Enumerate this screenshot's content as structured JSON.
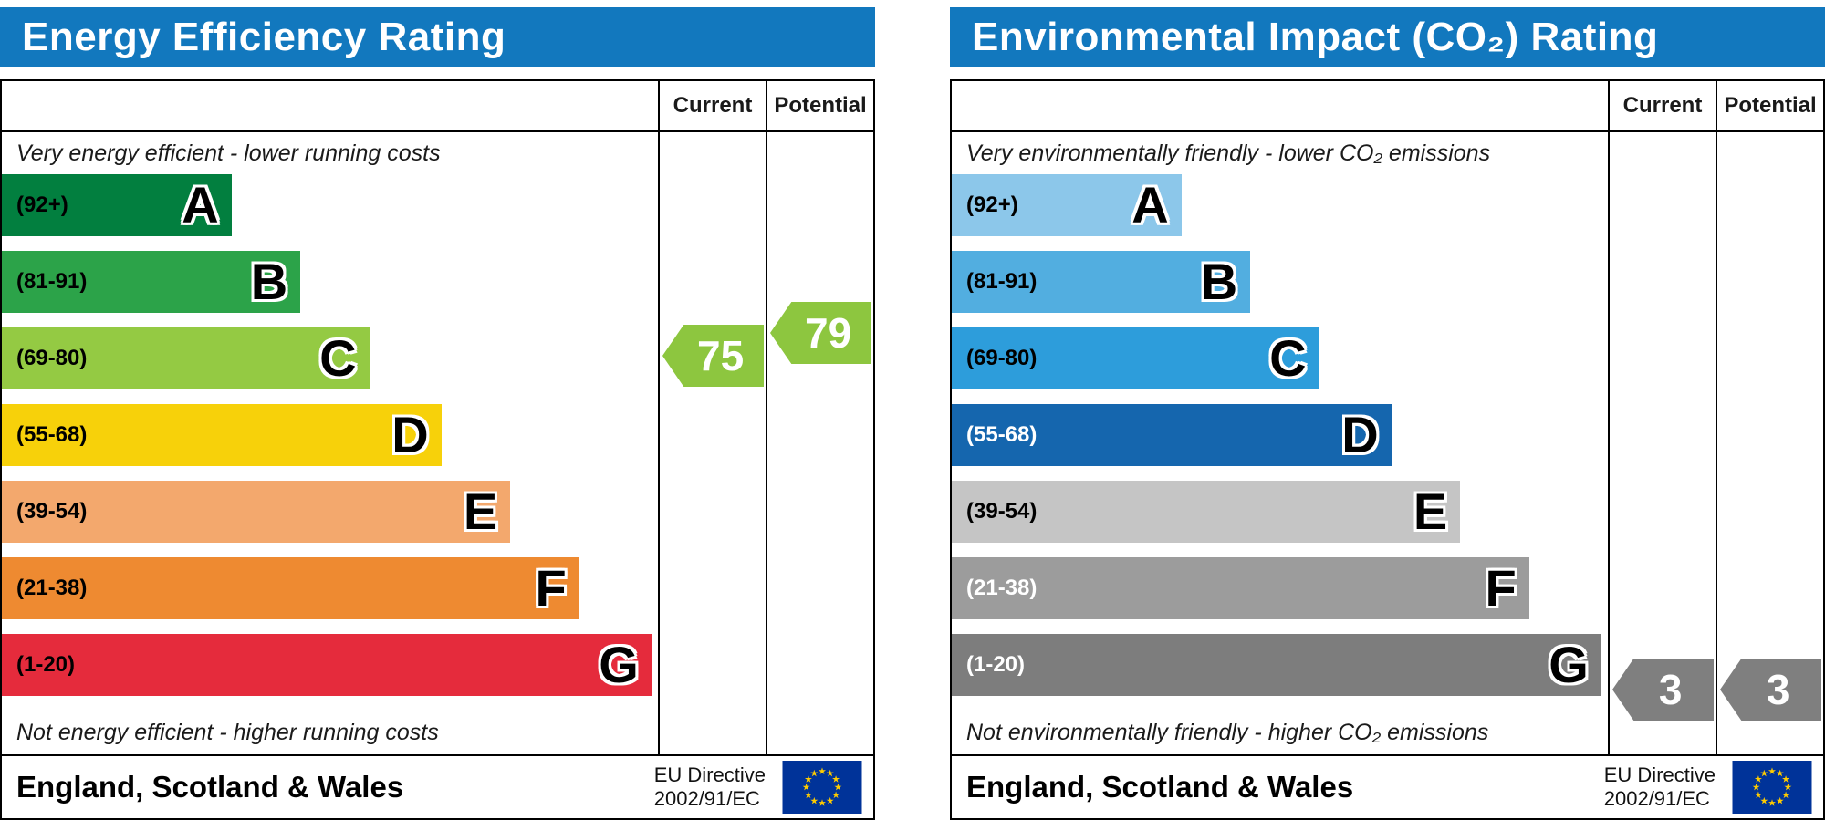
{
  "panels": [
    {
      "title": "Energy Efficiency Rating",
      "columns": {
        "current": "Current",
        "potential": "Potential"
      },
      "top_note": "Very energy efficient - lower running costs",
      "bottom_note": "Not energy efficient - higher running costs",
      "bands": [
        {
          "letter": "A",
          "range": "(92+)",
          "min": 92,
          "max": 100,
          "color": "#027f3f",
          "label_color": "#000000",
          "width_pct": 35
        },
        {
          "letter": "B",
          "range": "(81-91)",
          "min": 81,
          "max": 91,
          "color": "#2ca349",
          "label_color": "#000000",
          "width_pct": 45.5
        },
        {
          "letter": "C",
          "range": "(69-80)",
          "min": 69,
          "max": 80,
          "color": "#94ca43",
          "label_color": "#000000",
          "width_pct": 56
        },
        {
          "letter": "D",
          "range": "(55-68)",
          "min": 55,
          "max": 68,
          "color": "#f7d10a",
          "label_color": "#000000",
          "width_pct": 67
        },
        {
          "letter": "E",
          "range": "(39-54)",
          "min": 39,
          "max": 54,
          "color": "#f3a86d",
          "label_color": "#000000",
          "width_pct": 77.5
        },
        {
          "letter": "F",
          "range": "(21-38)",
          "min": 21,
          "max": 38,
          "color": "#ee8a31",
          "label_color": "#000000",
          "width_pct": 88
        },
        {
          "letter": "G",
          "range": "(1-20)",
          "min": 1,
          "max": 20,
          "color": "#e52b3c",
          "label_color": "#000000",
          "width_pct": 99
        }
      ],
      "current": {
        "value": 75,
        "band_index": 2,
        "color": "#8dc63f"
      },
      "potential": {
        "value": 79,
        "band_index": 2,
        "color": "#8dc63f"
      },
      "footer": {
        "region": "England, Scotland & Wales",
        "directive_line1": "EU Directive",
        "directive_line2": "2002/91/EC"
      }
    },
    {
      "title": "Environmental Impact (CO₂) Rating",
      "columns": {
        "current": "Current",
        "potential": "Potential"
      },
      "top_note": "Very environmentally friendly - lower CO₂ emissions",
      "bottom_note": "Not environmentally friendly - higher CO₂ emissions",
      "bands": [
        {
          "letter": "A",
          "range": "(92+)",
          "min": 92,
          "max": 100,
          "color": "#8cc7ea",
          "label_color": "#000000",
          "width_pct": 35
        },
        {
          "letter": "B",
          "range": "(81-91)",
          "min": 81,
          "max": 91,
          "color": "#52aee0",
          "label_color": "#000000",
          "width_pct": 45.5
        },
        {
          "letter": "C",
          "range": "(69-80)",
          "min": 69,
          "max": 80,
          "color": "#2d9ddb",
          "label_color": "#000000",
          "width_pct": 56
        },
        {
          "letter": "D",
          "range": "(55-68)",
          "min": 55,
          "max": 68,
          "color": "#1566ae",
          "label_color": "#ffffff",
          "width_pct": 67
        },
        {
          "letter": "E",
          "range": "(39-54)",
          "min": 39,
          "max": 54,
          "color": "#c5c5c5",
          "label_color": "#000000",
          "width_pct": 77.5
        },
        {
          "letter": "F",
          "range": "(21-38)",
          "min": 21,
          "max": 38,
          "color": "#9c9c9c",
          "label_color": "#ffffff",
          "width_pct": 88
        },
        {
          "letter": "G",
          "range": "(1-20)",
          "min": 1,
          "max": 20,
          "color": "#7d7d7d",
          "label_color": "#ffffff",
          "width_pct": 99
        }
      ],
      "current": {
        "value": 3,
        "band_index": 6,
        "color": "#7f7f7f"
      },
      "potential": {
        "value": 3,
        "band_index": 6,
        "color": "#7f7f7f"
      },
      "footer": {
        "region": "England, Scotland & Wales",
        "directive_line1": "EU Directive",
        "directive_line2": "2002/91/EC"
      }
    }
  ],
  "flag": {
    "background": "#003399",
    "star_color": "#ffcc00"
  },
  "chart_data": [
    {
      "type": "bar",
      "title": "Energy Efficiency Rating",
      "categories": [
        "A (92+)",
        "B (81-91)",
        "C (69-80)",
        "D (55-68)",
        "E (39-54)",
        "F (21-38)",
        "G (1-20)"
      ],
      "values": [
        35,
        45.5,
        56,
        67,
        77.5,
        88,
        99
      ],
      "current": 75,
      "potential": 79,
      "current_band": "C",
      "potential_band": "C",
      "columns": [
        "Current",
        "Potential"
      ],
      "annotation_top": "Very energy efficient - lower running costs",
      "annotation_bottom": "Not energy efficient - higher running costs",
      "footer": "England, Scotland & Wales — EU Directive 2002/91/EC"
    },
    {
      "type": "bar",
      "title": "Environmental Impact (CO₂) Rating",
      "categories": [
        "A (92+)",
        "B (81-91)",
        "C (69-80)",
        "D (55-68)",
        "E (39-54)",
        "F (21-38)",
        "G (1-20)"
      ],
      "values": [
        35,
        45.5,
        56,
        67,
        77.5,
        88,
        99
      ],
      "current": 3,
      "potential": 3,
      "current_band": "G",
      "potential_band": "G",
      "columns": [
        "Current",
        "Potential"
      ],
      "annotation_top": "Very environmentally friendly - lower CO₂ emissions",
      "annotation_bottom": "Not environmentally friendly - higher CO₂ emissions",
      "footer": "England, Scotland & Wales — EU Directive 2002/91/EC"
    }
  ]
}
